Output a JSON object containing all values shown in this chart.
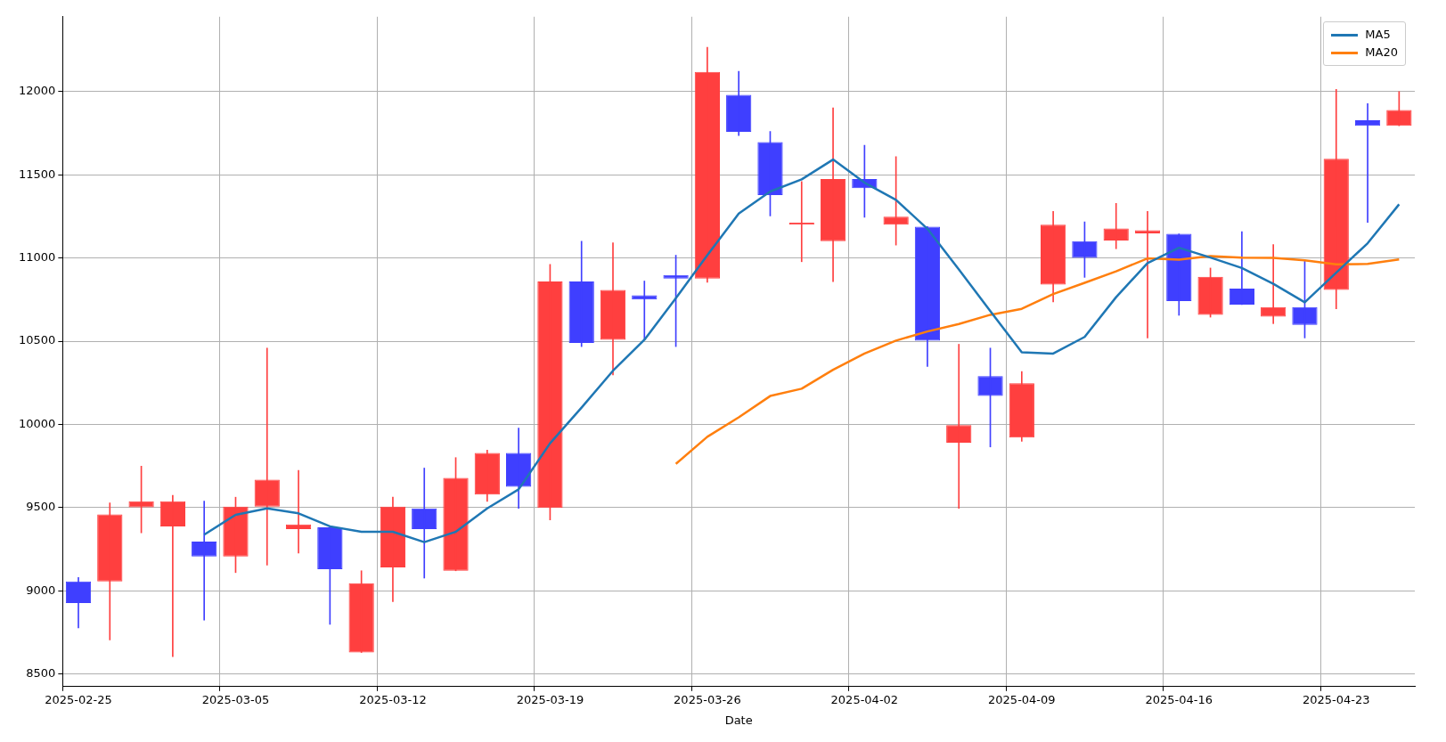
{
  "chart_data": {
    "type": "candlestick",
    "xlabel": "Date",
    "categories": [
      "2025-02-25",
      null,
      null,
      null,
      null,
      "2025-03-05",
      null,
      null,
      null,
      null,
      "2025-03-12",
      null,
      null,
      null,
      null,
      "2025-03-19",
      null,
      null,
      null,
      null,
      "2025-03-26",
      null,
      null,
      null,
      null,
      "2025-04-02",
      null,
      null,
      null,
      null,
      "2025-04-09",
      null,
      null,
      null,
      null,
      "2025-04-16",
      null,
      null,
      null,
      null,
      "2025-04-23",
      null,
      null
    ],
    "ohlc": [
      [
        9057,
        9080,
        8777,
        8927
      ],
      [
        9057,
        9529,
        8705,
        9460
      ],
      [
        9502,
        9749,
        9349,
        9538
      ],
      [
        9388,
        9574,
        8605,
        9538
      ],
      [
        9296,
        9540,
        8824,
        9207
      ],
      [
        9207,
        9563,
        9110,
        9507
      ],
      [
        9507,
        10459,
        9155,
        9668
      ],
      [
        9371,
        9724,
        9227,
        9399
      ],
      [
        9382,
        9385,
        8799,
        9130
      ],
      [
        8630,
        9121,
        8630,
        9046
      ],
      [
        9141,
        9563,
        8935,
        9507
      ],
      [
        9496,
        9738,
        9077,
        9371
      ],
      [
        9121,
        9801,
        9121,
        9679
      ],
      [
        9579,
        9846,
        9538,
        9829
      ],
      [
        9829,
        9979,
        9496,
        9626
      ],
      [
        9499,
        10962,
        9427,
        10859
      ],
      [
        10859,
        11101,
        10468,
        10490
      ],
      [
        10509,
        11092,
        10298,
        10809
      ],
      [
        10776,
        10862,
        10509,
        10751
      ],
      [
        10898,
        11017,
        10468,
        10876
      ],
      [
        10876,
        12266,
        10854,
        12119
      ],
      [
        11981,
        12122,
        11736,
        11758
      ],
      [
        11697,
        11761,
        11253,
        11378
      ],
      [
        11200,
        11459,
        10978,
        11212
      ],
      [
        11101,
        11903,
        10859,
        11475
      ],
      [
        11475,
        11678,
        11245,
        11420
      ],
      [
        11200,
        11609,
        11078,
        11248
      ],
      [
        11189,
        11189,
        10348,
        10504
      ],
      [
        9890,
        10482,
        9496,
        9996
      ],
      [
        10290,
        10459,
        9865,
        10171
      ],
      [
        9921,
        10318,
        9899,
        10248
      ],
      [
        10840,
        11281,
        10737,
        11200
      ],
      [
        11101,
        11217,
        10884,
        11001
      ],
      [
        11106,
        11328,
        11056,
        11178
      ],
      [
        11148,
        11281,
        10520,
        11167
      ],
      [
        11145,
        11145,
        10656,
        10742
      ],
      [
        10659,
        10940,
        10645,
        10887
      ],
      [
        10817,
        11159,
        10720,
        10720
      ],
      [
        10648,
        11081,
        10606,
        10706
      ],
      [
        10706,
        10990,
        10520,
        10598
      ],
      [
        10809,
        12014,
        10695,
        11597
      ],
      [
        11828,
        11928,
        11214,
        11795
      ],
      [
        11795,
        12000,
        11795,
        11889
      ]
    ],
    "colors": [
      "#3f3fff",
      "#ff3f3f",
      "#ff3f3f",
      "#ff3f3f",
      "#3f3fff",
      "#ff3f3f",
      "#ff3f3f",
      "#ff3f3f",
      "#3f3fff",
      "#ff3f3f",
      "#ff3f3f",
      "#3f3fff",
      "#ff3f3f",
      "#ff3f3f",
      "#3f3fff",
      "#ff3f3f",
      "#3f3fff",
      "#ff3f3f",
      "#3f3fff",
      "#3f3fff",
      "#ff3f3f",
      "#3f3fff",
      "#3f3fff",
      "#ff3f3f",
      "#ff3f3f",
      "#3f3fff",
      "#ff3f3f",
      "#3f3fff",
      "#ff3f3f",
      "#3f3fff",
      "#ff3f3f",
      "#ff3f3f",
      "#3f3fff",
      "#ff3f3f",
      "#ff3f3f",
      "#3f3fff",
      "#ff3f3f",
      "#3f3fff",
      "#ff3f3f",
      "#3f3fff",
      "#ff3f3f",
      "#3f3fff",
      "#ff3f3f"
    ],
    "series": [
      {
        "name": "MA5",
        "type": "line",
        "color": "#1f77b4",
        "values": [
          null,
          null,
          null,
          null,
          9338,
          9457,
          9496,
          9466,
          9388,
          9355,
          9355,
          9293,
          9355,
          9496,
          9610,
          9887,
          10101,
          10323,
          10509,
          10759,
          11017,
          11267,
          11400,
          11473,
          11592,
          11453,
          11350,
          11176,
          10931,
          10681,
          10434,
          10426,
          10526,
          10765,
          10970,
          11062,
          11003,
          10940,
          10845,
          10734,
          10912,
          11089,
          11323
        ]
      },
      {
        "name": "MA20",
        "type": "line",
        "color": "#ff7f0e",
        "values": [
          null,
          null,
          null,
          null,
          null,
          null,
          null,
          null,
          null,
          null,
          null,
          null,
          null,
          null,
          null,
          null,
          null,
          null,
          null,
          9763,
          9926,
          10043,
          10171,
          10215,
          10329,
          10426,
          10504,
          10559,
          10604,
          10659,
          10695,
          10784,
          10851,
          10920,
          10998,
          10990,
          11012,
          11003,
          11001,
          10987,
          10962,
          10965,
          10992
        ]
      }
    ],
    "ylim": [
      8425,
      12450
    ],
    "yticks": [
      8500,
      9000,
      9500,
      10000,
      10500,
      11000,
      11500,
      12000
    ],
    "grid": true,
    "legend": "top right",
    "line_style": "solid",
    "marker": "none"
  }
}
